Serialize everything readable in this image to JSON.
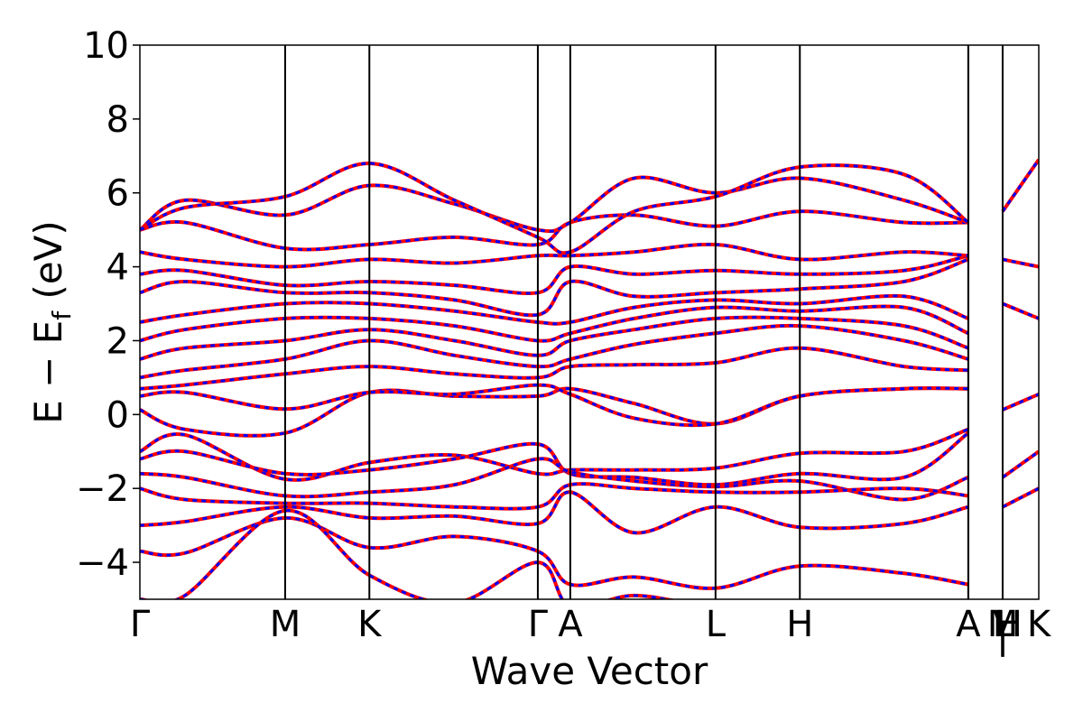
{
  "chart_data": {
    "type": "line",
    "xlabel": "Wave Vector",
    "ylabel": "E − E",
    "ylabel_sub": "f",
    "ylabel_unit": " (eV)",
    "ylim": [
      -5,
      10
    ],
    "yticks": [
      -4,
      -2,
      0,
      2,
      4,
      6,
      8,
      10
    ],
    "ytick_labels": [
      "−4",
      "−2",
      "0",
      "2",
      "4",
      "6",
      "8",
      "10"
    ],
    "grid": false,
    "legend": "none",
    "kpath": {
      "positions": [
        0.0,
        0.1616,
        0.2553,
        0.4427,
        0.4788,
        0.6404,
        0.7342,
        0.9216,
        0.9598,
        1.0
      ],
      "labels": [
        "Γ",
        "M",
        "K",
        "Γ",
        "A",
        "L",
        "H",
        "A",
        "M",
        "K"
      ],
      "extra_labels": [
        {
          "pos": 0.9598,
          "text": "|",
          "drop": true
        },
        {
          "pos": 0.9598,
          "text": "L",
          "drop": false
        },
        {
          "pos": 0.9598,
          "text": "|",
          "drop": true
        },
        {
          "pos": 0.9667,
          "text": "H",
          "drop": false
        }
      ]
    },
    "series": [
      {
        "color": "#ff0000",
        "style": "solid"
      },
      {
        "color": "#0000ff",
        "style": "dashed"
      }
    ],
    "bands": [
      [
        [
          0,
          0.13
        ],
        [
          0.05,
          -0.4
        ],
        [
          0.1616,
          -0.5
        ],
        [
          0.2553,
          0.6
        ],
        [
          0.35,
          0.5
        ],
        [
          0.4427,
          0.5
        ],
        [
          0.4788,
          0.7
        ],
        [
          0.55,
          0.3
        ],
        [
          0.6404,
          -0.25
        ],
        [
          0.7342,
          0.5
        ],
        [
          0.85,
          0.7
        ],
        [
          0.9216,
          0.7
        ]
      ],
      [
        [
          0,
          0.5
        ],
        [
          0.05,
          0.6
        ],
        [
          0.1616,
          0.15
        ],
        [
          0.2553,
          0.6
        ],
        [
          0.35,
          0.55
        ],
        [
          0.4427,
          0.8
        ],
        [
          0.4788,
          0.55
        ],
        [
          0.55,
          -0.1
        ],
        [
          0.6404,
          -0.25
        ],
        [
          0.7342,
          0.5
        ],
        [
          0.85,
          0.7
        ],
        [
          0.9216,
          0.7
        ]
      ],
      [
        [
          0,
          -1.0
        ],
        [
          0.05,
          -0.55
        ],
        [
          0.1616,
          -1.75
        ],
        [
          0.2553,
          -1.3
        ],
        [
          0.35,
          -1.1
        ],
        [
          0.4427,
          -1.6
        ],
        [
          0.4788,
          -1.5
        ],
        [
          0.55,
          -1.5
        ],
        [
          0.6404,
          -1.45
        ],
        [
          0.7342,
          -1.05
        ],
        [
          0.85,
          -1.0
        ],
        [
          0.9216,
          -0.4
        ]
      ],
      [
        [
          0,
          -1.2
        ],
        [
          0.05,
          -1.0
        ],
        [
          0.1616,
          -1.6
        ],
        [
          0.2553,
          -1.5
        ],
        [
          0.35,
          -1.2
        ],
        [
          0.4427,
          -0.8
        ],
        [
          0.4788,
          -1.6
        ],
        [
          0.55,
          -1.7
        ],
        [
          0.6404,
          -1.9
        ],
        [
          0.7342,
          -1.6
        ],
        [
          0.85,
          -1.7
        ],
        [
          0.9216,
          -0.5
        ]
      ],
      [
        [
          0,
          -1.6
        ],
        [
          0.05,
          -1.7
        ],
        [
          0.1616,
          -2.2
        ],
        [
          0.2553,
          -2.1
        ],
        [
          0.35,
          -1.9
        ],
        [
          0.4427,
          -1.2
        ],
        [
          0.4788,
          -1.55
        ],
        [
          0.55,
          -1.8
        ],
        [
          0.6404,
          -1.95
        ],
        [
          0.7342,
          -1.8
        ],
        [
          0.85,
          -2.3
        ],
        [
          0.9216,
          -1.7
        ]
      ],
      [
        [
          0,
          -2.0
        ],
        [
          0.05,
          -2.3
        ],
        [
          0.1616,
          -2.4
        ],
        [
          0.2553,
          -2.4
        ],
        [
          0.35,
          -2.5
        ],
        [
          0.4427,
          -2.5
        ],
        [
          0.4788,
          -1.9
        ],
        [
          0.55,
          -2.0
        ],
        [
          0.6404,
          -2.1
        ],
        [
          0.7342,
          -2.1
        ],
        [
          0.85,
          -2.0
        ],
        [
          0.9216,
          -2.2
        ]
      ],
      [
        [
          0,
          -3.0
        ],
        [
          0.05,
          -2.9
        ],
        [
          0.1616,
          -2.5
        ],
        [
          0.2553,
          -2.8
        ],
        [
          0.35,
          -2.75
        ],
        [
          0.4427,
          -2.95
        ],
        [
          0.4788,
          -2.1
        ],
        [
          0.55,
          -3.2
        ],
        [
          0.6404,
          -2.5
        ],
        [
          0.7342,
          -3.05
        ],
        [
          0.85,
          -2.95
        ],
        [
          0.9216,
          -2.5
        ]
      ],
      [
        [
          0,
          -3.7
        ],
        [
          0.05,
          -3.75
        ],
        [
          0.1616,
          -2.8
        ],
        [
          0.2553,
          -3.6
        ],
        [
          0.35,
          -3.3
        ],
        [
          0.4427,
          -3.7
        ],
        [
          0.4788,
          -4.6
        ],
        [
          0.55,
          -4.4
        ],
        [
          0.6404,
          -4.7
        ],
        [
          0.7342,
          -4.1
        ],
        [
          0.85,
          -4.3
        ],
        [
          0.9216,
          -4.6
        ]
      ],
      [
        [
          0,
          -5.0
        ],
        [
          0.05,
          -4.9
        ],
        [
          0.1616,
          -2.6
        ],
        [
          0.2553,
          -4.35
        ],
        [
          0.35,
          -5.1
        ],
        [
          0.4427,
          -4.0
        ],
        [
          0.4788,
          -5.2
        ],
        [
          0.55,
          -4.9
        ],
        [
          0.6404,
          -5.2
        ],
        [
          0.7342,
          -5.1
        ],
        [
          0.85,
          -5.1
        ],
        [
          0.9216,
          -5.1
        ]
      ],
      [
        [
          0,
          0.7
        ],
        [
          0.05,
          0.8
        ],
        [
          0.1616,
          1.1
        ],
        [
          0.2553,
          1.3
        ],
        [
          0.35,
          1.1
        ],
        [
          0.4427,
          1.0
        ],
        [
          0.4788,
          1.3
        ],
        [
          0.55,
          1.35
        ],
        [
          0.6404,
          1.4
        ],
        [
          0.7342,
          1.8
        ],
        [
          0.85,
          1.3
        ],
        [
          0.9216,
          1.2
        ]
      ],
      [
        [
          0,
          1.0
        ],
        [
          0.05,
          1.2
        ],
        [
          0.1616,
          1.5
        ],
        [
          0.2553,
          2.0
        ],
        [
          0.35,
          1.6
        ],
        [
          0.4427,
          1.3
        ],
        [
          0.4788,
          1.5
        ],
        [
          0.55,
          1.9
        ],
        [
          0.6404,
          2.2
        ],
        [
          0.7342,
          2.4
        ],
        [
          0.85,
          2.0
        ],
        [
          0.9216,
          1.5
        ]
      ],
      [
        [
          0,
          1.5
        ],
        [
          0.05,
          1.8
        ],
        [
          0.1616,
          2.0
        ],
        [
          0.2553,
          2.3
        ],
        [
          0.35,
          2.0
        ],
        [
          0.4427,
          1.6
        ],
        [
          0.4788,
          2.0
        ],
        [
          0.55,
          2.3
        ],
        [
          0.6404,
          2.6
        ],
        [
          0.7342,
          2.6
        ],
        [
          0.85,
          2.4
        ],
        [
          0.9216,
          1.8
        ]
      ],
      [
        [
          0,
          2.0
        ],
        [
          0.05,
          2.3
        ],
        [
          0.1616,
          2.6
        ],
        [
          0.2553,
          2.6
        ],
        [
          0.35,
          2.4
        ],
        [
          0.4427,
          2.0
        ],
        [
          0.4788,
          2.2
        ],
        [
          0.55,
          2.6
        ],
        [
          0.6404,
          2.9
        ],
        [
          0.7342,
          2.8
        ],
        [
          0.85,
          2.9
        ],
        [
          0.9216,
          2.2
        ]
      ],
      [
        [
          0,
          2.5
        ],
        [
          0.05,
          2.7
        ],
        [
          0.1616,
          3.0
        ],
        [
          0.2553,
          3.0
        ],
        [
          0.35,
          2.8
        ],
        [
          0.4427,
          2.5
        ],
        [
          0.4788,
          2.5
        ],
        [
          0.55,
          2.9
        ],
        [
          0.6404,
          3.1
        ],
        [
          0.7342,
          3.0
        ],
        [
          0.85,
          3.2
        ],
        [
          0.9216,
          2.6
        ]
      ],
      [
        [
          0,
          3.3
        ],
        [
          0.05,
          3.6
        ],
        [
          0.1616,
          3.3
        ],
        [
          0.2553,
          3.3
        ],
        [
          0.35,
          3.1
        ],
        [
          0.4427,
          2.7
        ],
        [
          0.4788,
          3.6
        ],
        [
          0.55,
          3.2
        ],
        [
          0.6404,
          3.3
        ],
        [
          0.7342,
          3.4
        ],
        [
          0.85,
          3.6
        ],
        [
          0.9216,
          4.2
        ]
      ],
      [
        [
          0,
          3.8
        ],
        [
          0.05,
          3.9
        ],
        [
          0.1616,
          3.5
        ],
        [
          0.2553,
          3.6
        ],
        [
          0.35,
          3.5
        ],
        [
          0.4427,
          3.3
        ],
        [
          0.4788,
          4.0
        ],
        [
          0.55,
          3.8
        ],
        [
          0.6404,
          3.9
        ],
        [
          0.7342,
          3.8
        ],
        [
          0.85,
          3.9
        ],
        [
          0.9216,
          4.3
        ]
      ],
      [
        [
          0,
          4.4
        ],
        [
          0.05,
          4.2
        ],
        [
          0.1616,
          4.0
        ],
        [
          0.2553,
          4.2
        ],
        [
          0.35,
          4.1
        ],
        [
          0.4427,
          4.3
        ],
        [
          0.4788,
          4.3
        ],
        [
          0.55,
          4.4
        ],
        [
          0.6404,
          4.6
        ],
        [
          0.7342,
          4.2
        ],
        [
          0.85,
          4.4
        ],
        [
          0.9216,
          4.3
        ]
      ],
      [
        [
          0,
          5.0
        ],
        [
          0.05,
          5.2
        ],
        [
          0.1616,
          4.5
        ],
        [
          0.2553,
          4.6
        ],
        [
          0.35,
          4.8
        ],
        [
          0.4427,
          4.6
        ],
        [
          0.4788,
          5.2
        ],
        [
          0.55,
          5.4
        ],
        [
          0.6404,
          5.1
        ],
        [
          0.7342,
          5.5
        ],
        [
          0.85,
          5.2
        ],
        [
          0.9216,
          5.2
        ]
      ],
      [
        [
          0,
          5.0
        ],
        [
          0.05,
          5.8
        ],
        [
          0.1616,
          5.4
        ],
        [
          0.2553,
          6.2
        ],
        [
          0.35,
          5.7
        ],
        [
          0.4427,
          5.0
        ],
        [
          0.4788,
          5.2
        ],
        [
          0.55,
          6.4
        ],
        [
          0.6404,
          6.0
        ],
        [
          0.7342,
          6.4
        ],
        [
          0.85,
          5.8
        ],
        [
          0.9216,
          5.2
        ]
      ],
      [
        [
          0,
          5.0
        ],
        [
          0.05,
          5.6
        ],
        [
          0.1616,
          5.9
        ],
        [
          0.2553,
          6.8
        ],
        [
          0.35,
          5.8
        ],
        [
          0.4427,
          4.8
        ],
        [
          0.4788,
          4.4
        ],
        [
          0.55,
          5.5
        ],
        [
          0.6404,
          5.9
        ],
        [
          0.7342,
          6.7
        ],
        [
          0.85,
          6.5
        ],
        [
          0.9216,
          5.2
        ]
      ],
      [
        [
          0.9598,
          0.13
        ],
        [
          1.0,
          0.55
        ]
      ],
      [
        [
          0.9598,
          -1.7
        ],
        [
          1.0,
          -1.0
        ]
      ],
      [
        [
          0.9598,
          -2.5
        ],
        [
          1.0,
          -2.0
        ]
      ],
      [
        [
          0.9598,
          4.2
        ],
        [
          1.0,
          4.0
        ]
      ],
      [
        [
          0.9598,
          5.5
        ],
        [
          1.0,
          6.9
        ]
      ],
      [
        [
          0.9598,
          3.0
        ],
        [
          1.0,
          2.6
        ]
      ]
    ]
  }
}
